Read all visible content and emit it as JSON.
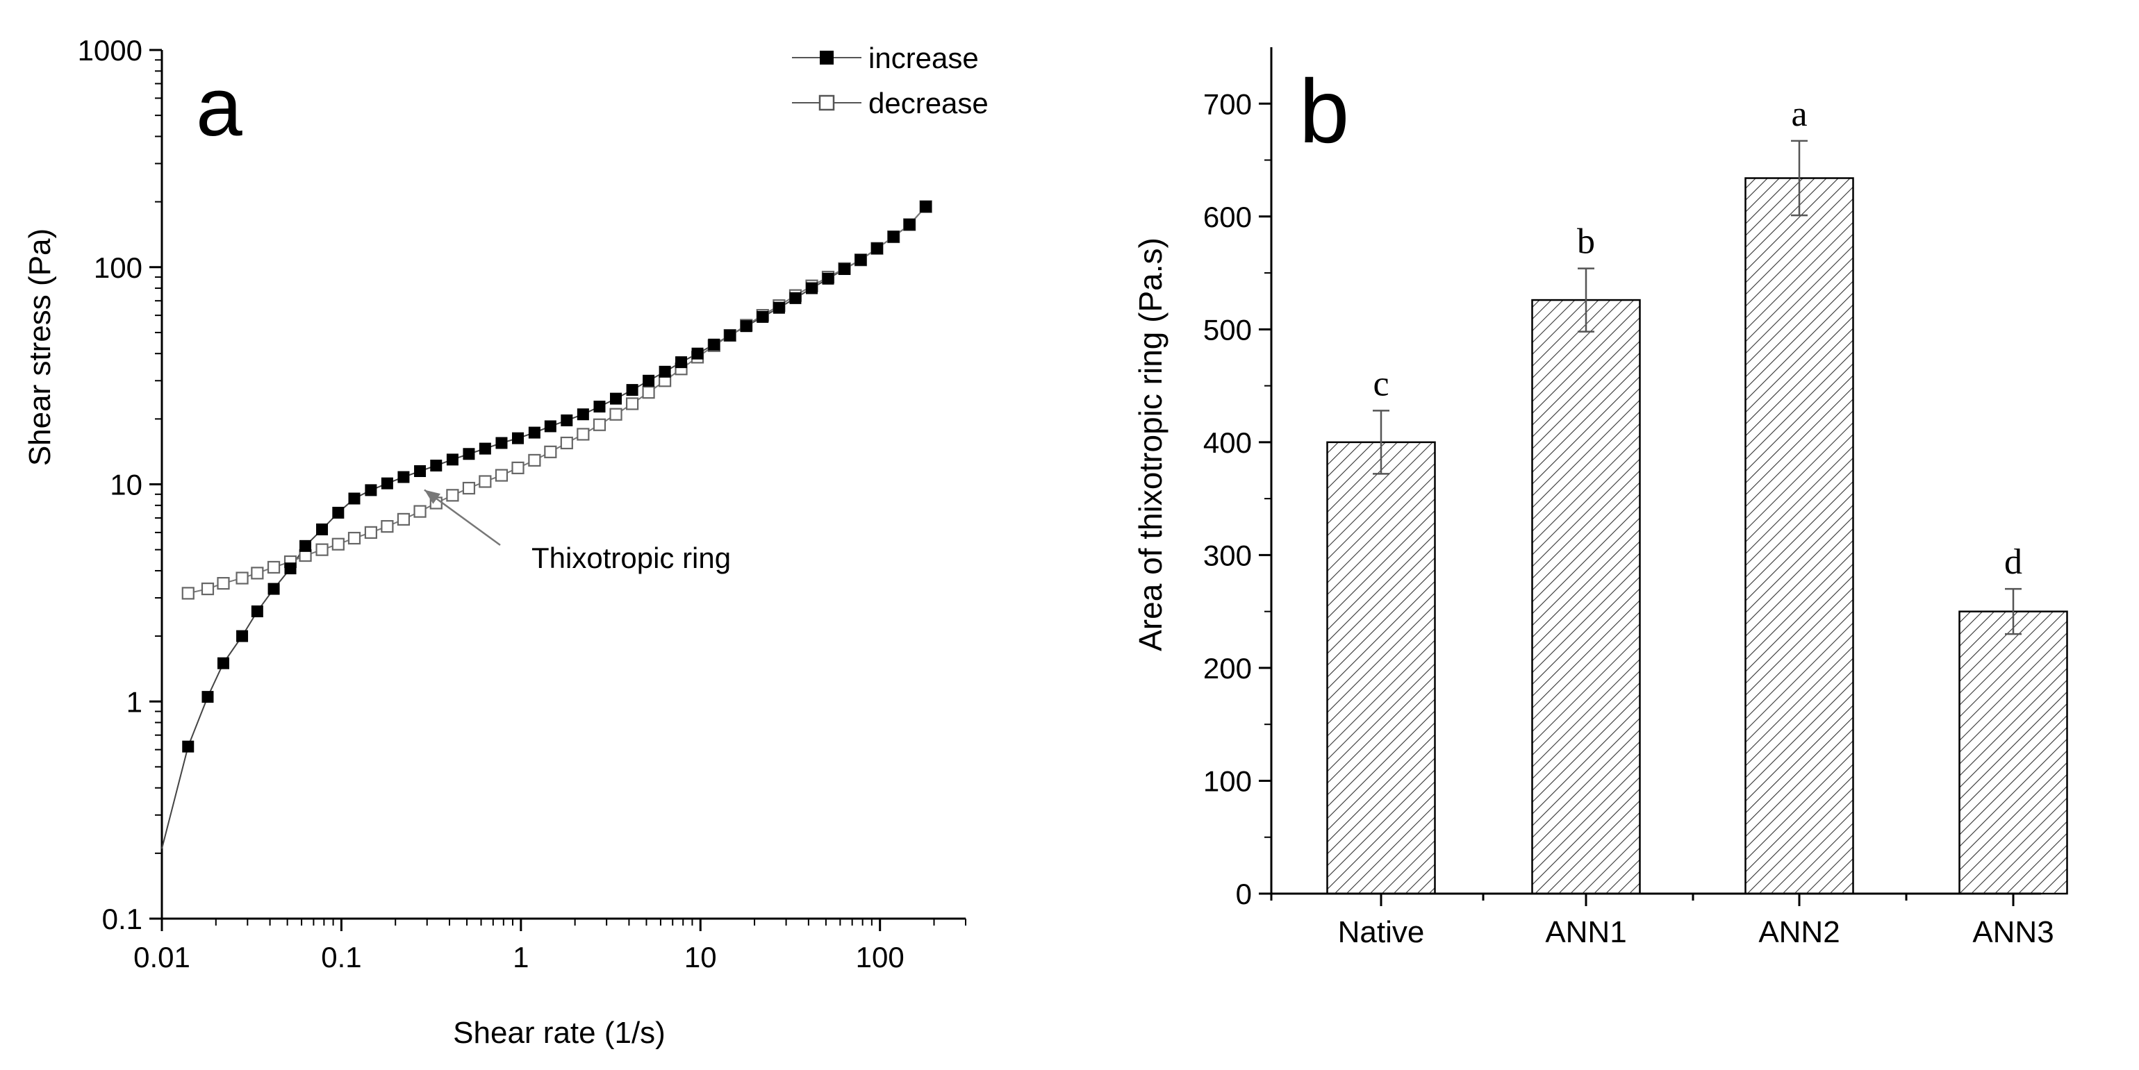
{
  "chart_data": [
    {
      "panel_label": "a",
      "type": "scatter",
      "title": "",
      "xlabel": "Shear rate (1/s)",
      "ylabel": "Shear stress (Pa)",
      "xscale": "log",
      "yscale": "log",
      "xlim": [
        0.01,
        300
      ],
      "ylim": [
        0.1,
        1000
      ],
      "xticks": [
        0.01,
        0.1,
        1,
        10,
        100
      ],
      "xtick_labels": [
        "0.01",
        "0.1",
        "1",
        "10",
        "100"
      ],
      "yticks": [
        0.1,
        1,
        10,
        100,
        1000
      ],
      "ytick_labels": [
        "0.1",
        "1",
        "10",
        "100",
        "1000"
      ],
      "legend_position": "top-right",
      "series": [
        {
          "name": "increase",
          "marker": "filled-square",
          "x": [
            0.014,
            0.018,
            0.022,
            0.028,
            0.034,
            0.042,
            0.052,
            0.063,
            0.078,
            0.096,
            0.118,
            0.146,
            0.18,
            0.222,
            0.274,
            0.337,
            0.416,
            0.513,
            0.632,
            0.78,
            0.962,
            1.19,
            1.46,
            1.8,
            2.22,
            2.74,
            3.38,
            4.17,
            5.14,
            6.34,
            7.81,
            9.63,
            11.9,
            14.6,
            18.0,
            22.2,
            27.4,
            33.8,
            41.7,
            51.4,
            63.4,
            78.1,
            96.3,
            119,
            146,
            180
          ],
          "y": [
            0.62,
            1.05,
            1.5,
            2.0,
            2.6,
            3.3,
            4.1,
            5.2,
            6.2,
            7.4,
            8.6,
            9.4,
            10.1,
            10.8,
            11.5,
            12.2,
            13.0,
            13.8,
            14.6,
            15.5,
            16.3,
            17.3,
            18.5,
            19.7,
            21.0,
            22.8,
            24.8,
            27.2,
            30.0,
            33.0,
            36.5,
            40.0,
            44.0,
            48.5,
            53.5,
            59.0,
            65.0,
            72.0,
            80.0,
            88.5,
            98.0,
            108,
            122,
            138,
            157,
            190
          ],
          "origin_point": {
            "x": 0.01,
            "y": 0.21
          }
        },
        {
          "name": "decrease",
          "marker": "open-square",
          "x": [
            0.014,
            0.018,
            0.022,
            0.028,
            0.034,
            0.042,
            0.052,
            0.063,
            0.078,
            0.096,
            0.118,
            0.146,
            0.18,
            0.222,
            0.274,
            0.337,
            0.416,
            0.513,
            0.632,
            0.78,
            0.962,
            1.19,
            1.46,
            1.8,
            2.22,
            2.74,
            3.38,
            4.17,
            5.14,
            6.34,
            7.81,
            9.63,
            11.9,
            14.6,
            18.0,
            22.2,
            27.4,
            33.8,
            41.7,
            51.4,
            63.4,
            78.1,
            96.3,
            119,
            146,
            180
          ],
          "y": [
            3.15,
            3.3,
            3.5,
            3.7,
            3.9,
            4.15,
            4.4,
            4.7,
            5.0,
            5.3,
            5.65,
            6.0,
            6.4,
            6.9,
            7.5,
            8.2,
            8.9,
            9.6,
            10.3,
            11.0,
            11.9,
            12.9,
            14.1,
            15.5,
            17.0,
            18.8,
            21.0,
            23.5,
            26.5,
            30.0,
            34.0,
            38.5,
            43.5,
            48.5,
            54.0,
            60.0,
            66.5,
            74.0,
            82.0,
            90.0,
            98.5,
            108,
            122,
            138,
            157,
            190
          ]
        }
      ],
      "annotation": {
        "text": "Thixotropic ring",
        "arrow_to": {
          "x": 0.27,
          "y": 10.0
        },
        "text_anchor": {
          "x": 1.0,
          "y": 4.9
        }
      }
    },
    {
      "panel_label": "b",
      "type": "bar",
      "title": "",
      "xlabel": "",
      "ylabel": "Area of thixotropic ring (Pa.s)",
      "ylim": [
        0,
        750
      ],
      "yticks": [
        0,
        100,
        200,
        300,
        400,
        500,
        600,
        700
      ],
      "ytick_labels": [
        "0",
        "100",
        "200",
        "300",
        "400",
        "500",
        "600",
        "700"
      ],
      "categories": [
        "Native",
        "ANN1",
        "ANN2",
        "ANN3"
      ],
      "values": [
        400,
        526,
        634,
        250
      ],
      "errors": [
        28,
        28,
        33,
        20
      ],
      "significance_letters": [
        "c",
        "b",
        "a",
        "d"
      ],
      "fill": "diagonal-hatch"
    }
  ],
  "colors": {
    "ink": "#000000",
    "grey_line": "#808080",
    "background": "#ffffff"
  }
}
